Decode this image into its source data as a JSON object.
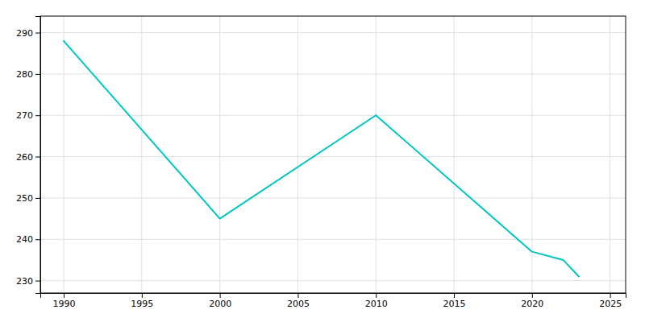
{
  "chart_data": {
    "type": "line",
    "x": [
      1990,
      2000,
      2010,
      2020,
      2022,
      2023
    ],
    "values": [
      288,
      245,
      270,
      237,
      235,
      231
    ],
    "color": "#00C5C5",
    "xlim": [
      1988.5,
      2026
    ],
    "ylim": [
      227,
      294
    ],
    "xticks": [
      1990,
      1995,
      2000,
      2005,
      2010,
      2015,
      2020,
      2025
    ],
    "yticks": [
      230,
      240,
      250,
      260,
      270,
      280,
      290
    ],
    "grid": true
  }
}
